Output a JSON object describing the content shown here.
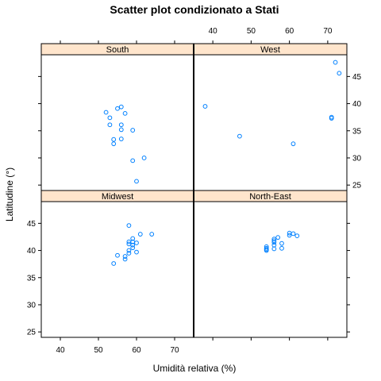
{
  "chart_data": {
    "type": "scatter",
    "title": "Scatter plot condizionato a Stati",
    "xlabel": "Umidità relativa (%)",
    "ylabel": "Latitudine (°)",
    "xlim": [
      35,
      75
    ],
    "ylim": [
      24,
      49
    ],
    "x_ticks": [
      40,
      50,
      60,
      70
    ],
    "y_ticks": [
      25,
      30,
      35,
      40,
      45
    ],
    "point_color": "#0080ff",
    "strip_color": "#ffe5cc",
    "panels": [
      {
        "name": "South",
        "points": [
          {
            "x": 52,
            "y": 38.4
          },
          {
            "x": 53,
            "y": 37.4
          },
          {
            "x": 55,
            "y": 39.1
          },
          {
            "x": 56,
            "y": 39.4
          },
          {
            "x": 57,
            "y": 38.2
          },
          {
            "x": 53,
            "y": 36.1
          },
          {
            "x": 56,
            "y": 36.1
          },
          {
            "x": 56,
            "y": 35.2
          },
          {
            "x": 59,
            "y": 35.1
          },
          {
            "x": 54,
            "y": 33.4
          },
          {
            "x": 54,
            "y": 32.6
          },
          {
            "x": 56,
            "y": 33.5
          },
          {
            "x": 62,
            "y": 30.0
          },
          {
            "x": 59,
            "y": 29.5
          },
          {
            "x": 60,
            "y": 25.7
          }
        ]
      },
      {
        "name": "West",
        "points": [
          {
            "x": 72,
            "y": 47.6
          },
          {
            "x": 73,
            "y": 45.6
          },
          {
            "x": 38,
            "y": 39.5
          },
          {
            "x": 71,
            "y": 37.5
          },
          {
            "x": 71,
            "y": 37.3
          },
          {
            "x": 47,
            "y": 34.0
          },
          {
            "x": 61,
            "y": 32.6
          }
        ]
      },
      {
        "name": "Midwest",
        "points": [
          {
            "x": 58,
            "y": 44.6
          },
          {
            "x": 64,
            "y": 43.0
          },
          {
            "x": 61,
            "y": 43.0
          },
          {
            "x": 59,
            "y": 42.2
          },
          {
            "x": 58,
            "y": 41.6
          },
          {
            "x": 59,
            "y": 41.6
          },
          {
            "x": 60,
            "y": 41.4
          },
          {
            "x": 58,
            "y": 41.2
          },
          {
            "x": 59,
            "y": 41.0
          },
          {
            "x": 59,
            "y": 40.5
          },
          {
            "x": 58,
            "y": 40.0
          },
          {
            "x": 60,
            "y": 39.7
          },
          {
            "x": 58,
            "y": 39.5
          },
          {
            "x": 55,
            "y": 39.1
          },
          {
            "x": 57,
            "y": 38.9
          },
          {
            "x": 57,
            "y": 38.4
          },
          {
            "x": 54,
            "y": 37.6
          }
        ]
      },
      {
        "name": "North-East",
        "points": [
          {
            "x": 60,
            "y": 43.2
          },
          {
            "x": 61,
            "y": 43.1
          },
          {
            "x": 62,
            "y": 42.7
          },
          {
            "x": 60,
            "y": 42.8
          },
          {
            "x": 57,
            "y": 42.4
          },
          {
            "x": 56,
            "y": 42.1
          },
          {
            "x": 56,
            "y": 41.8
          },
          {
            "x": 56,
            "y": 41.5
          },
          {
            "x": 58,
            "y": 41.3
          },
          {
            "x": 56,
            "y": 41.0
          },
          {
            "x": 54,
            "y": 40.7
          },
          {
            "x": 54,
            "y": 40.4
          },
          {
            "x": 54,
            "y": 40.2
          },
          {
            "x": 54,
            "y": 40.0
          },
          {
            "x": 56,
            "y": 40.3
          },
          {
            "x": 58,
            "y": 40.4
          }
        ]
      }
    ]
  }
}
